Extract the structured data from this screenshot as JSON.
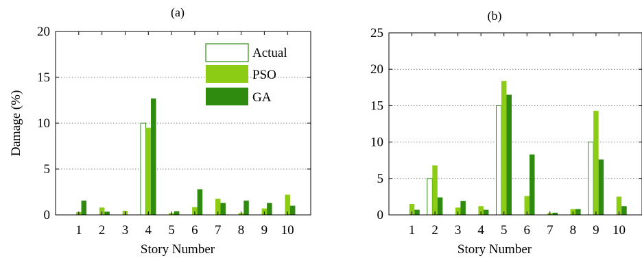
{
  "colors": {
    "actual_stroke": "#2e8b14",
    "actual_fill": "#ffffff",
    "pso": "#8ccc14",
    "ga": "#2f8a10",
    "grid": "#7f7f7f",
    "axis": "#000000"
  },
  "chart_data": [
    {
      "type": "bar",
      "title": "(a)",
      "xlabel": "Story Number",
      "ylabel": "Damage (%)",
      "ylim": [
        0,
        20
      ],
      "yticks": [
        "0",
        "5",
        "10",
        "15",
        "20"
      ],
      "grid": "horizontal-dotted",
      "legend_position": "top-right",
      "categories": [
        "1",
        "2",
        "3",
        "4",
        "5",
        "6",
        "7",
        "8",
        "9",
        "10"
      ],
      "series": [
        {
          "name": "Actual",
          "values": [
            0,
            0,
            0,
            10,
            0,
            0,
            0,
            0,
            0,
            0
          ]
        },
        {
          "name": "PSO",
          "values": [
            0.3,
            0.8,
            0.45,
            9.5,
            0.2,
            0.85,
            1.75,
            0.2,
            0.7,
            2.2
          ]
        },
        {
          "name": "GA",
          "values": [
            1.55,
            0.35,
            0,
            12.7,
            0.4,
            2.8,
            1.3,
            1.55,
            1.3,
            1.0
          ]
        }
      ]
    },
    {
      "type": "bar",
      "title": "(b)",
      "xlabel": "Story Number",
      "ylabel": "",
      "ylim": [
        0,
        25
      ],
      "yticks": [
        "0",
        "5",
        "10",
        "15",
        "20",
        "25"
      ],
      "grid": "horizontal-dotted",
      "categories": [
        "1",
        "2",
        "3",
        "4",
        "5",
        "6",
        "7",
        "8",
        "9",
        "10"
      ],
      "series": [
        {
          "name": "Actual",
          "values": [
            0,
            5,
            0,
            0,
            15,
            0,
            0,
            0,
            10,
            0
          ]
        },
        {
          "name": "PSO",
          "values": [
            1.5,
            6.8,
            1.0,
            1.2,
            18.4,
            2.6,
            0.25,
            0.8,
            14.3,
            2.5
          ]
        },
        {
          "name": "GA",
          "values": [
            0.7,
            2.4,
            1.9,
            0.7,
            16.5,
            8.3,
            0.3,
            0.8,
            7.6,
            1.2
          ]
        }
      ]
    }
  ]
}
